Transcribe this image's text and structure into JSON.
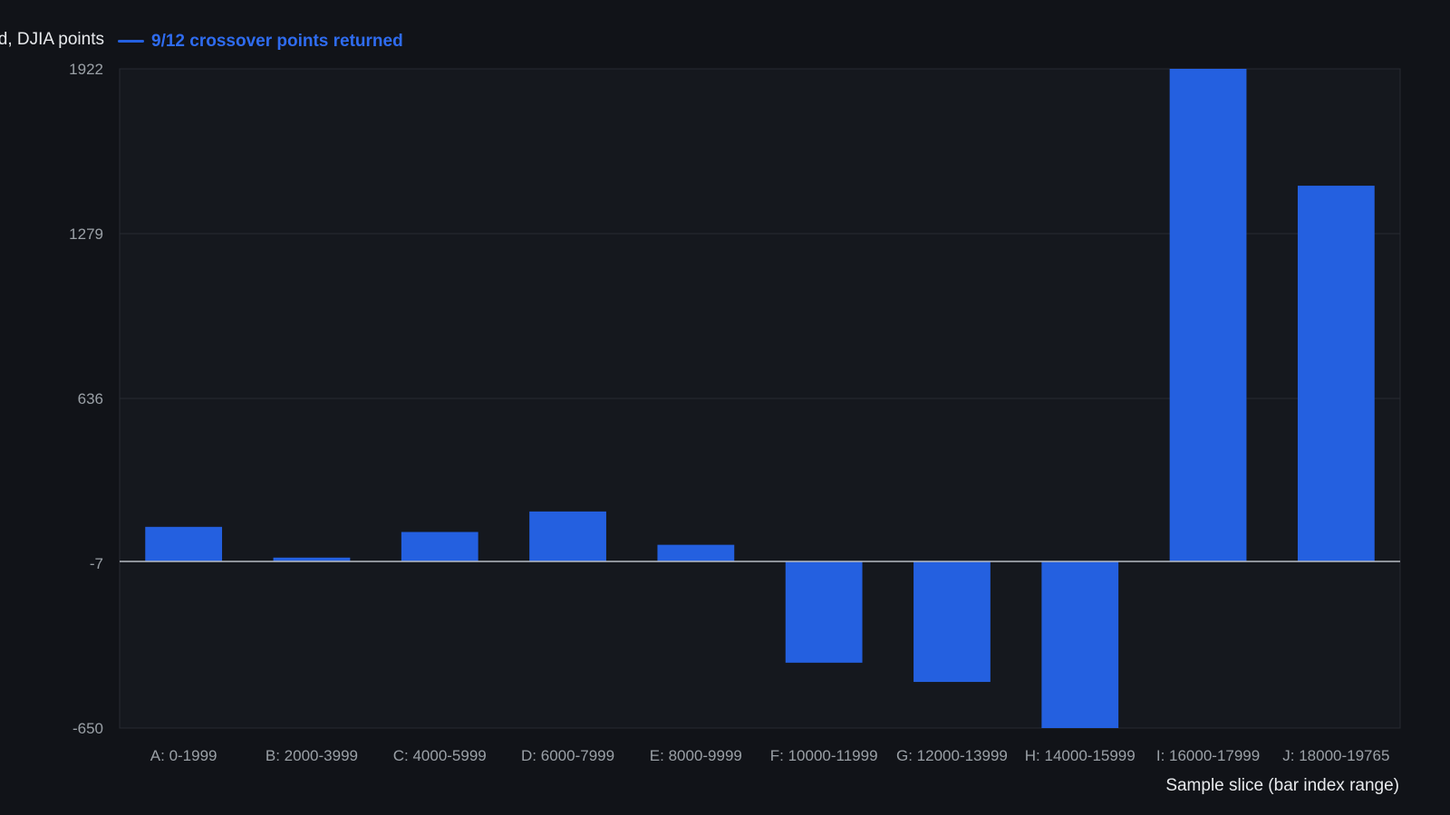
{
  "colors": {
    "background": "#111318",
    "plot_background": "#15181e",
    "bar": "#2460e0",
    "legend_text": "#2f6cf0",
    "grid": "#272a31",
    "axis_text": "#9aa0a6",
    "zero_line": "#b8bcc4"
  },
  "chart_data": {
    "type": "bar",
    "title": "",
    "legend": {
      "label": "9/12 crossover points returned",
      "placement": "top-left"
    },
    "ylabel_visible": "d, DJIA points",
    "xlabel": "Sample slice (bar index range)",
    "categories": [
      "A: 0-1999",
      "B: 2000-3999",
      "C: 4000-5999",
      "D: 6000-7999",
      "E: 8000-9999",
      "F: 10000-11999",
      "G: 12000-13999",
      "H: 14000-15999",
      "I: 16000-17999",
      "J: 18000-19765"
    ],
    "series": [
      {
        "name": "9/12 crossover points returned",
        "values": [
          135,
          15,
          115,
          195,
          65,
          -395,
          -470,
          -650,
          1922,
          1466
        ]
      }
    ],
    "ylim": [
      -650,
      1922
    ],
    "yticks": [
      -650,
      -7,
      636,
      1279,
      1922
    ],
    "grid": true
  }
}
